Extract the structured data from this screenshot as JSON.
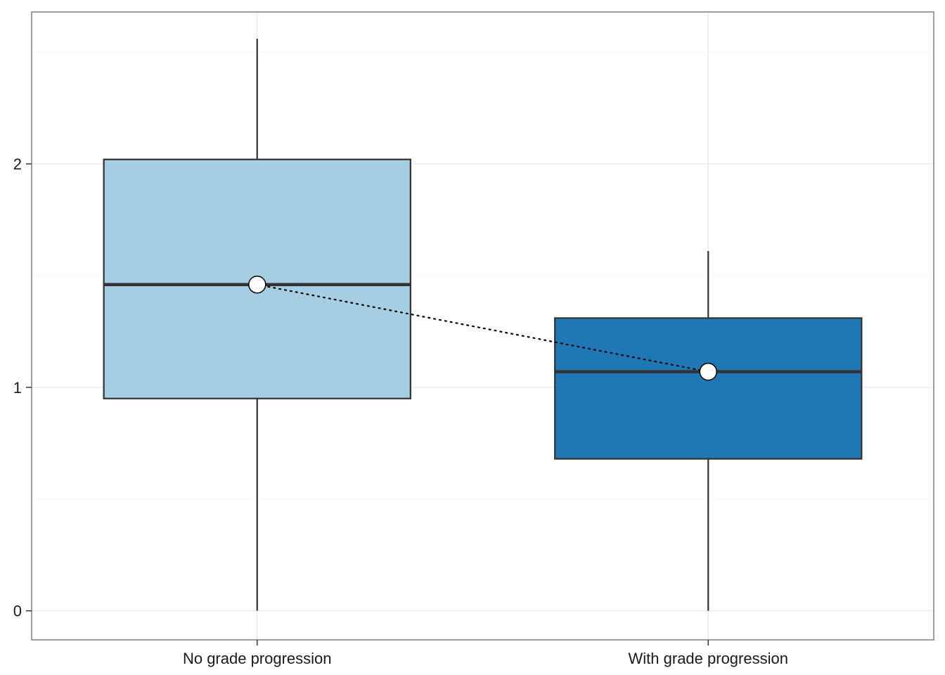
{
  "chart_data": {
    "type": "boxplot",
    "title": "",
    "xlabel": "",
    "ylabel": "",
    "ylim": [
      -0.13,
      2.68
    ],
    "y_ticks": [
      0,
      1,
      2
    ],
    "y_minor_ticks": [
      0.5,
      1.5,
      2.5
    ],
    "grid": true,
    "categories": [
      "No grade progression",
      "With grade progression"
    ],
    "boxes": [
      {
        "category": "No grade progression",
        "whisker_low": 0.0,
        "q1": 0.95,
        "median": 1.46,
        "q3": 2.02,
        "whisker_high": 2.56,
        "mean": 1.46,
        "fill": "#a6cee3"
      },
      {
        "category": "With grade progression",
        "whisker_low": 0.0,
        "q1": 0.68,
        "median": 1.07,
        "q3": 1.31,
        "whisker_high": 1.61,
        "mean": 1.07,
        "fill": "#1f78b4"
      }
    ],
    "mean_connector": "dotted",
    "colors": {
      "outline": "#333333",
      "grid": "#ebebeb",
      "panel_border": "#7f7f7f",
      "point_fill": "#ffffff"
    }
  }
}
